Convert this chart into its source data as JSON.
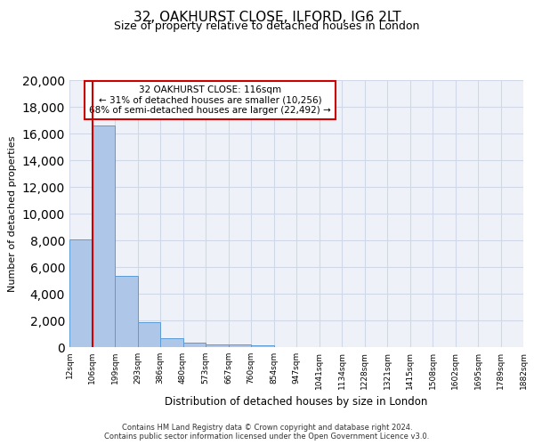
{
  "title": "32, OAKHURST CLOSE, ILFORD, IG6 2LT",
  "subtitle": "Size of property relative to detached houses in London",
  "xlabel": "Distribution of detached houses by size in London",
  "ylabel": "Number of detached properties",
  "bar_values": [
    8050,
    16600,
    5350,
    1900,
    680,
    320,
    200,
    175,
    150,
    0,
    0,
    0,
    0,
    0,
    0,
    0,
    0,
    0,
    0,
    0
  ],
  "bar_labels": [
    "12sqm",
    "106sqm",
    "199sqm",
    "293sqm",
    "386sqm",
    "480sqm",
    "573sqm",
    "667sqm",
    "760sqm",
    "854sqm",
    "947sqm",
    "1041sqm",
    "1134sqm",
    "1228sqm",
    "1321sqm",
    "1415sqm",
    "1508sqm",
    "1602sqm",
    "1695sqm",
    "1789sqm",
    "1882sqm"
  ],
  "bar_color": "#aec6e8",
  "bar_edge_color": "#5b9bd5",
  "vline_color": "#cc0000",
  "annotation_title": "32 OAKHURST CLOSE: 116sqm",
  "annotation_line1": "← 31% of detached houses are smaller (10,256)",
  "annotation_line2": "68% of semi-detached houses are larger (22,492) →",
  "annotation_box_color": "#cc0000",
  "ylim": [
    0,
    20000
  ],
  "yticks": [
    0,
    2000,
    4000,
    6000,
    8000,
    10000,
    12000,
    14000,
    16000,
    18000,
    20000
  ],
  "grid_color": "#d0d8e8",
  "bg_color": "#eef2f8",
  "footer1": "Contains HM Land Registry data © Crown copyright and database right 2024.",
  "footer2": "Contains public sector information licensed under the Open Government Licence v3.0."
}
